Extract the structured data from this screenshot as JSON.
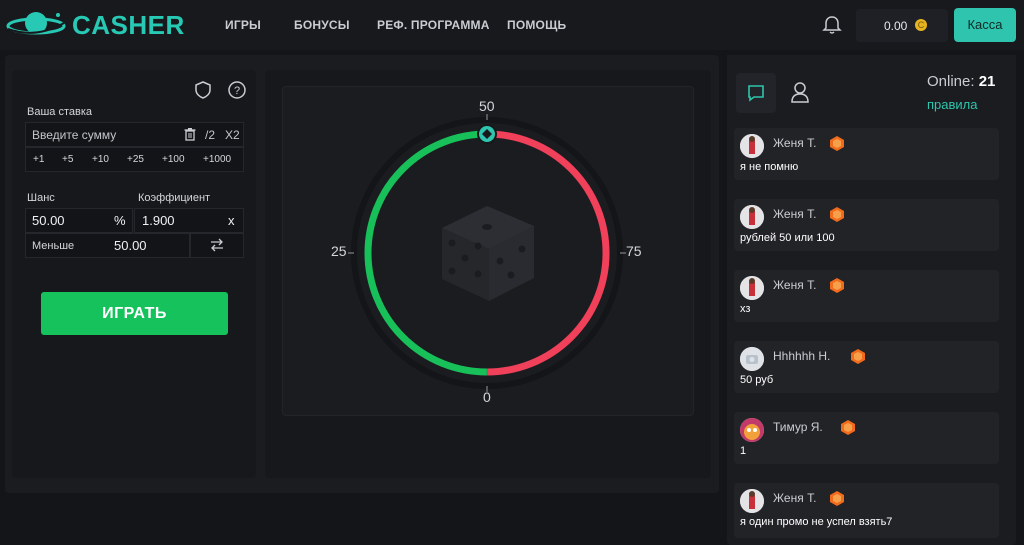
{
  "header": {
    "logo_text": "CASHER",
    "nav": [
      "ИГРЫ",
      "БОНУСЫ",
      "РЕФ. ПРОГРАММА",
      "ПОМОЩЬ"
    ],
    "balance": "0.00",
    "coin_glyph": "C",
    "cashier_label": "Касса"
  },
  "bet": {
    "label": "Ваша ставка",
    "placeholder": "Введите сумму",
    "half": "/2",
    "double": "X2",
    "quick_amounts": [
      "+1",
      "+5",
      "+10",
      "+25",
      "+100",
      "+1000"
    ],
    "chance_label": "Шанс",
    "chance_value": "50.00",
    "percent_sign": "%",
    "coef_label": "Коэффициент",
    "coef_value": "1.900",
    "coef_sign": "x",
    "less_label": "Меньше",
    "less_value": "50.00",
    "play_label": "ИГРАТЬ"
  },
  "wheel": {
    "labels": {
      "top": "50",
      "right": "75",
      "bottom": "0",
      "left": "25"
    },
    "win_fraction": 0.5,
    "colors": {
      "win": "#18c05a",
      "lose": "#f0405a",
      "marker": "#2ec4ad"
    }
  },
  "chat": {
    "online_label": "Online:",
    "online_count": "21",
    "rules_label": "правила",
    "messages": [
      {
        "name": "Женя Т.",
        "text": "я не помню"
      },
      {
        "name": "Женя Т.",
        "text": "рублей 50 или 100"
      },
      {
        "name": "Женя Т.",
        "text": "хз"
      },
      {
        "name": "Hhhhhh H.",
        "text": "50 руб"
      },
      {
        "name": "Тимур Я.",
        "text": "1"
      },
      {
        "name": "Женя Т.",
        "text": "я один промо не успел взять7"
      }
    ]
  }
}
